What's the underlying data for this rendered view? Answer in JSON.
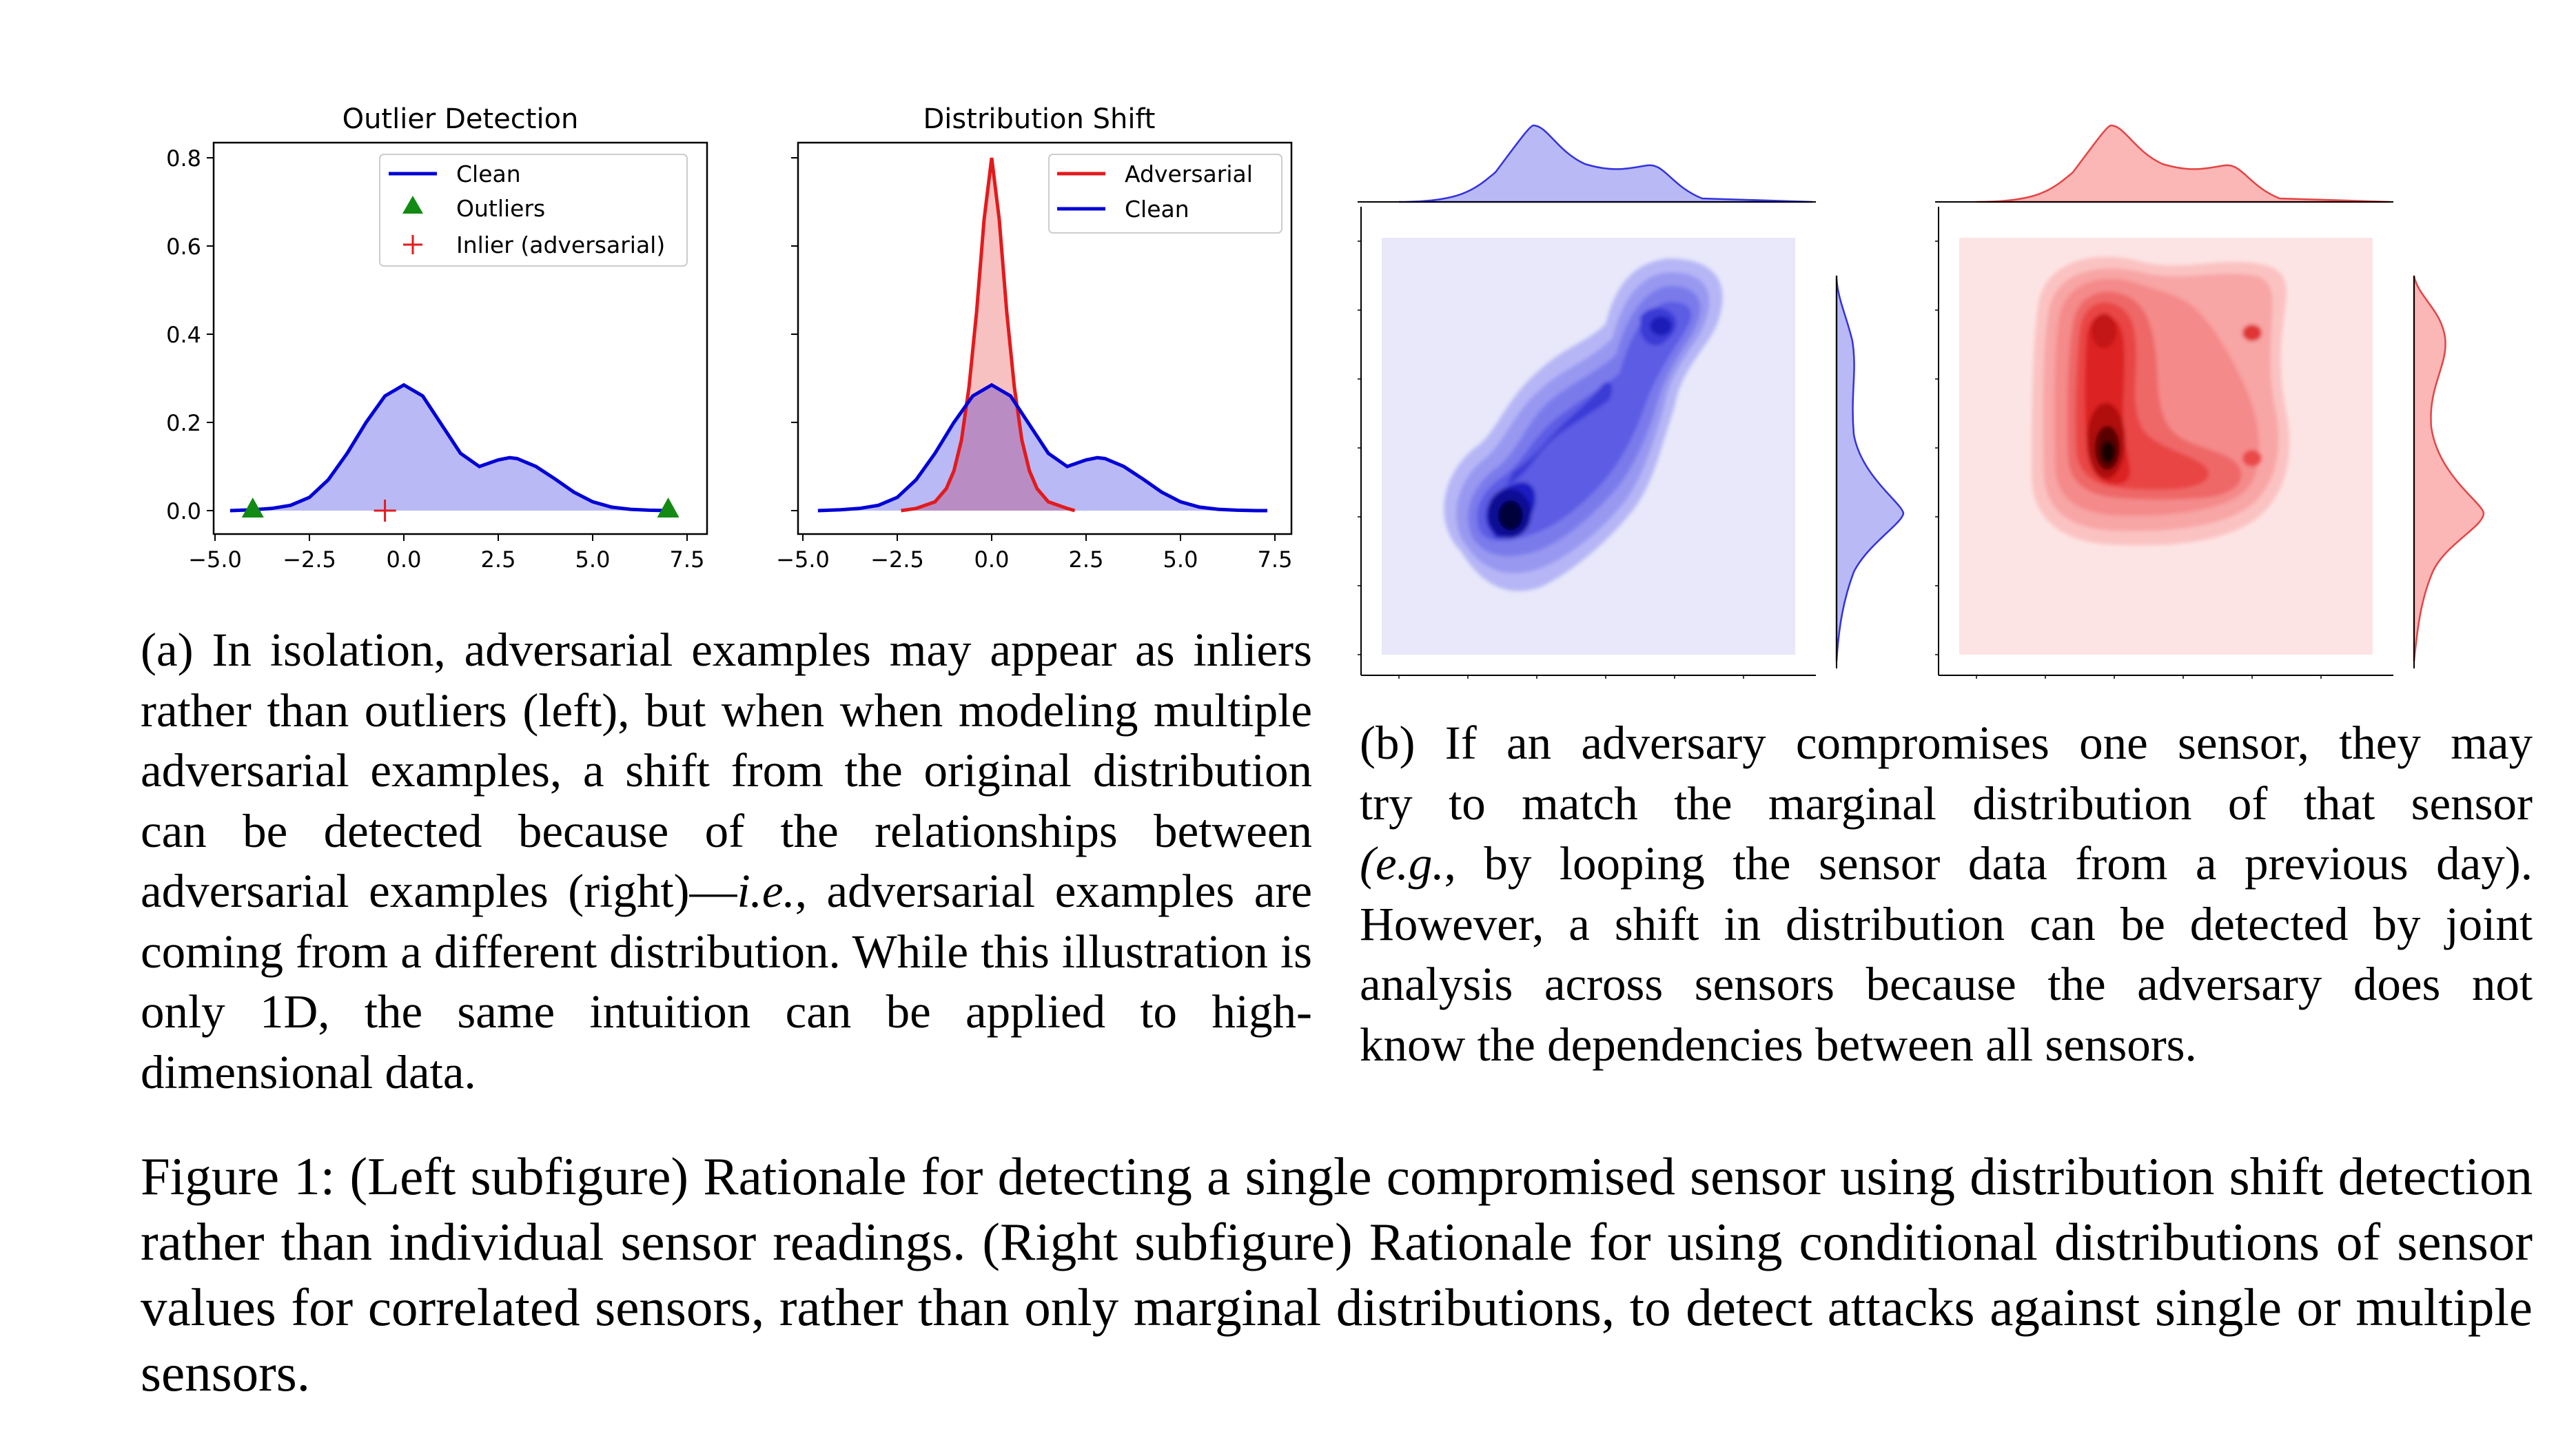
{
  "subfigure_a": {
    "caption_segments": [
      "(a) In isolation, adversarial examples may appear as inliers rather than outliers (left), but when when modeling multiple adversarial examples, a shift from the original distribution can be detected because of the relationships between adversarial examples (right)—",
      "i.e.",
      ", adversarial examples are coming from a different distribution. While this illustration is only 1D, the same intuition can be applied to high-dimensional data."
    ]
  },
  "subfigure_b": {
    "caption_lines": [
      "(b) If an adversary compromises one sensor, they may",
      "try to match the marginal distribution of that sensor",
      ", by looping the sensor data from a previous day).",
      "However, a shift in distribution can be detected by joint",
      "analysis across sensors because the adversary does not",
      "know the dependencies between all sensors."
    ],
    "caption_italic_prefix": "(e.g."
  },
  "figure_caption": "Figure 1: (Left subfigure) Rationale for detecting a single compromised sensor using distribution shift detection rather than individual sensor readings. (Right subfigure) Rationale for using conditional distributions of sensor values for correlated sensors, rather than only marginal distributions, to detect attacks against single or multiple sensors.",
  "colors": {
    "clean": "#0000d6",
    "clean_fill": "#b9b9f5",
    "adversarial": "#e31a1c",
    "adversarial_fill": "#f7b6b6",
    "outlier": "#138a13",
    "blue_kde_bg": "#e8e8fa",
    "red_kde_bg": "#fde4e4"
  },
  "chart_data": [
    {
      "type": "area",
      "title": "Outlier Detection",
      "xlabel": "",
      "ylabel": "",
      "xlim": [
        -5.0,
        7.5
      ],
      "ylim": [
        0.0,
        0.8
      ],
      "xticks": [
        "−5.0",
        "−2.5",
        "0.0",
        "2.5",
        "5.0",
        "7.5"
      ],
      "yticks": [
        "0.0",
        "0.2",
        "0.4",
        "0.6",
        "0.8"
      ],
      "legend_placement": "upper-right",
      "series": [
        {
          "name": "Clean",
          "x": [
            -4.6,
            -4.0,
            -3.5,
            -3.0,
            -2.5,
            -2.0,
            -1.5,
            -1.0,
            -0.5,
            0.0,
            0.5,
            1.0,
            1.5,
            2.0,
            2.5,
            2.8,
            3.0,
            3.5,
            4.0,
            4.5,
            5.0,
            5.5,
            6.0,
            6.5,
            7.0
          ],
          "y": [
            0.0,
            0.002,
            0.005,
            0.012,
            0.03,
            0.07,
            0.13,
            0.2,
            0.26,
            0.285,
            0.26,
            0.195,
            0.13,
            0.1,
            0.115,
            0.12,
            0.118,
            0.1,
            0.072,
            0.042,
            0.02,
            0.008,
            0.003,
            0.001,
            0.0
          ]
        },
        {
          "name": "Outliers",
          "points": [
            [
              -4.0,
              0.0
            ],
            [
              7.0,
              0.0
            ]
          ]
        },
        {
          "name": "Inlier (adversarial)",
          "points": [
            [
              -0.5,
              0.0
            ]
          ]
        }
      ]
    },
    {
      "type": "area",
      "title": "Distribution Shift",
      "xlabel": "",
      "ylabel": "",
      "xlim": [
        -5.0,
        7.5
      ],
      "ylim": [
        0.0,
        0.8
      ],
      "xticks": [
        "−5.0",
        "−2.5",
        "0.0",
        "2.5",
        "5.0",
        "7.5"
      ],
      "legend_placement": "upper-right",
      "series": [
        {
          "name": "Adversarial",
          "x": [
            -2.4,
            -2.0,
            -1.5,
            -1.2,
            -1.0,
            -0.8,
            -0.6,
            -0.4,
            -0.2,
            0.0,
            0.2,
            0.4,
            0.6,
            0.8,
            1.0,
            1.2,
            1.5,
            2.0,
            2.2
          ],
          "y": [
            0.0,
            0.005,
            0.02,
            0.05,
            0.09,
            0.16,
            0.28,
            0.45,
            0.66,
            0.8,
            0.66,
            0.45,
            0.28,
            0.16,
            0.09,
            0.05,
            0.02,
            0.005,
            0.0
          ]
        },
        {
          "name": "Clean",
          "x": [
            -4.6,
            -4.0,
            -3.5,
            -3.0,
            -2.5,
            -2.0,
            -1.5,
            -1.0,
            -0.5,
            0.0,
            0.5,
            1.0,
            1.5,
            2.0,
            2.5,
            2.8,
            3.0,
            3.5,
            4.0,
            4.5,
            5.0,
            5.5,
            6.0,
            6.5,
            7.0,
            7.3
          ],
          "y": [
            0.0,
            0.002,
            0.005,
            0.012,
            0.03,
            0.07,
            0.13,
            0.2,
            0.26,
            0.285,
            0.26,
            0.195,
            0.13,
            0.1,
            0.115,
            0.12,
            0.118,
            0.1,
            0.072,
            0.042,
            0.02,
            0.008,
            0.003,
            0.001,
            0.0,
            0.0
          ]
        }
      ]
    }
  ]
}
